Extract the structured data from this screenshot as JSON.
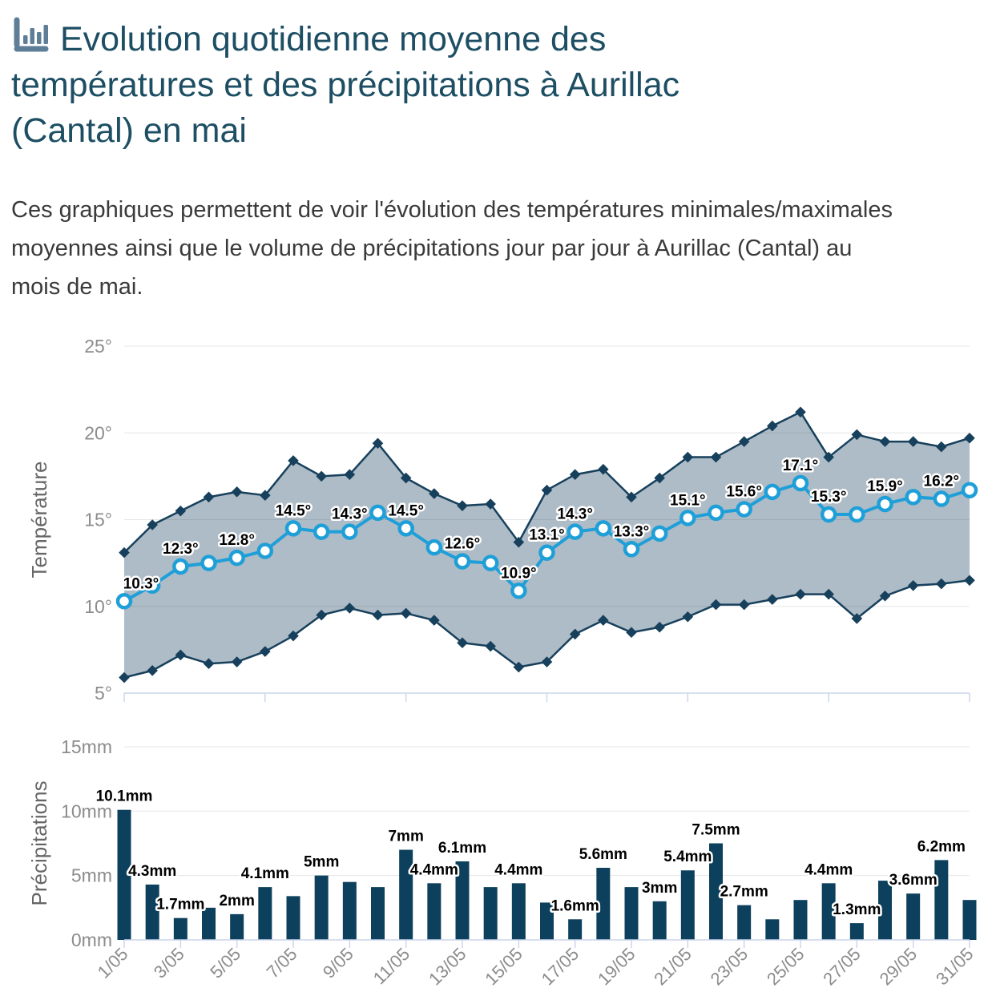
{
  "header": {
    "title": "Evolution quotidienne moyenne des températures et des précipitations à Aurillac (Cantal) en mai",
    "title_lines": [
      "Evolution quotidienne moyenne des",
      "températures et des précipitations à Aurillac",
      "(Cantal) en mai"
    ],
    "icon": "bar-chart-icon"
  },
  "intro": {
    "text": "Ces graphiques permettent de voir l'évolution des températures minimales/maximales moyennes ainsi que le volume de précipitations jour par jour à Aurillac (Cantal) au mois de mai.",
    "lines": [
      "Ces graphiques permettent de voir l'évolution des températures minimales/maximales",
      "moyennes ainsi que le volume de précipitations jour par jour à Aurillac (Cantal) au",
      "mois de mai."
    ]
  },
  "colors": {
    "title_text": "#1d4e63",
    "body_text": "#3a3a3a",
    "icon": "#5e7e97",
    "grid": "#e6e6e6",
    "axis_line": "#ccd6eb",
    "tick_text": "#8c8c8c",
    "axis_title_text": "#666666",
    "mean_line": "#1f9fd8",
    "marker_fill": "#ffffff",
    "range_line": "#17405c",
    "band_fill": "rgba(23,64,94,0.35)",
    "bar_fill": "#0d405c",
    "data_label": "#000000",
    "data_label_halo": "#ffffff"
  },
  "chart_data": [
    {
      "type": "area",
      "title": "Evolution quotidienne moyenne des températures",
      "ylabel": "Température",
      "ylim": [
        5,
        25
      ],
      "grid": true,
      "legend": "none",
      "ytick_values": [
        25,
        20,
        15,
        10,
        5
      ],
      "ytick_labels": [
        "25°",
        "20°",
        "15°",
        "10°",
        "5°"
      ],
      "xtick_days": [
        1,
        6,
        11,
        16,
        21,
        26,
        31
      ],
      "x_days": [
        1,
        2,
        3,
        4,
        5,
        6,
        7,
        8,
        9,
        10,
        11,
        12,
        13,
        14,
        15,
        16,
        17,
        18,
        19,
        20,
        21,
        22,
        23,
        24,
        25,
        26,
        27,
        28,
        29,
        30,
        31
      ],
      "series": [
        {
          "name": "Température moyenne",
          "role": "mean",
          "values": [
            10.3,
            11.2,
            12.3,
            12.5,
            12.8,
            13.2,
            14.5,
            14.3,
            14.3,
            15.4,
            14.5,
            13.4,
            12.6,
            12.5,
            10.9,
            13.1,
            14.3,
            14.5,
            13.3,
            14.2,
            15.1,
            15.4,
            15.6,
            16.6,
            17.1,
            15.3,
            15.3,
            15.9,
            16.3,
            16.2,
            16.7
          ]
        },
        {
          "name": "Température maximale",
          "role": "upper",
          "values": [
            13.1,
            14.7,
            15.5,
            16.3,
            16.6,
            16.4,
            18.4,
            17.5,
            17.6,
            19.4,
            17.4,
            16.5,
            15.8,
            15.9,
            13.7,
            16.7,
            17.6,
            17.9,
            16.3,
            17.4,
            18.6,
            18.6,
            19.5,
            20.4,
            21.2,
            18.6,
            19.9,
            19.5,
            19.5,
            19.2,
            19.7
          ]
        },
        {
          "name": "Température minimale",
          "role": "lower",
          "values": [
            5.9,
            6.3,
            7.2,
            6.7,
            6.8,
            7.4,
            8.3,
            9.5,
            9.9,
            9.5,
            9.6,
            9.2,
            7.9,
            7.7,
            6.5,
            6.8,
            8.4,
            9.2,
            8.5,
            8.8,
            9.4,
            10.1,
            10.1,
            10.4,
            10.7,
            10.7,
            9.3,
            10.6,
            11.2,
            11.3,
            11.5
          ]
        }
      ],
      "point_labels": {
        "1": "10.3°",
        "3": "12.3°",
        "5": "12.8°",
        "7": "14.5°",
        "9": "14.3°",
        "11": "14.5°",
        "13": "12.6°",
        "15": "10.9°",
        "16": "13.1°",
        "17": "14.3°",
        "19": "13.3°",
        "21": "15.1°",
        "23": "15.6°",
        "25": "17.1°",
        "26": "15.3°",
        "28": "15.9°",
        "30": "16.2°"
      }
    },
    {
      "type": "bar",
      "title": "Volume de précipitations jour par jour",
      "ylabel": "Précipitations",
      "ylim": [
        0,
        15
      ],
      "grid": true,
      "legend": "none",
      "ytick_values": [
        15,
        10,
        5,
        0
      ],
      "ytick_labels": [
        "15mm",
        "10mm",
        "5mm",
        "0mm"
      ],
      "xtick_days": [
        1,
        3,
        5,
        7,
        9,
        11,
        13,
        15,
        17,
        19,
        21,
        23,
        25,
        27,
        29,
        31
      ],
      "xtick_labels": [
        "1/05",
        "3/05",
        "5/05",
        "7/05",
        "9/05",
        "11/05",
        "13/05",
        "15/05",
        "17/05",
        "19/05",
        "21/05",
        "23/05",
        "25/05",
        "27/05",
        "29/05",
        "31/05"
      ],
      "x_days": [
        1,
        2,
        3,
        4,
        5,
        6,
        7,
        8,
        9,
        10,
        11,
        12,
        13,
        14,
        15,
        16,
        17,
        18,
        19,
        20,
        21,
        22,
        23,
        24,
        25,
        26,
        27,
        28,
        29,
        30,
        31
      ],
      "values": [
        10.1,
        4.3,
        1.7,
        2.5,
        2,
        4.1,
        3.4,
        5,
        4.5,
        4.1,
        7,
        4.4,
        6.1,
        4.1,
        4.4,
        2.9,
        1.6,
        5.6,
        4.1,
        3,
        5.4,
        7.5,
        2.7,
        1.6,
        3.1,
        4.4,
        1.3,
        4.6,
        3.6,
        6.2,
        3.1
      ],
      "bar_labels": {
        "1": "10.1mm",
        "2": "4.3mm",
        "3": "1.7mm",
        "5": "2mm",
        "6": "4.1mm",
        "8": "5mm",
        "11": "7mm",
        "12": "4.4mm",
        "13": "6.1mm",
        "15": "4.4mm",
        "17": "1.6mm",
        "18": "5.6mm",
        "20": "3mm",
        "21": "5.4mm",
        "22": "7.5mm",
        "23": "2.7mm",
        "26": "4.4mm",
        "27": "1.3mm",
        "29": "3.6mm",
        "30": "6.2mm"
      }
    }
  ]
}
